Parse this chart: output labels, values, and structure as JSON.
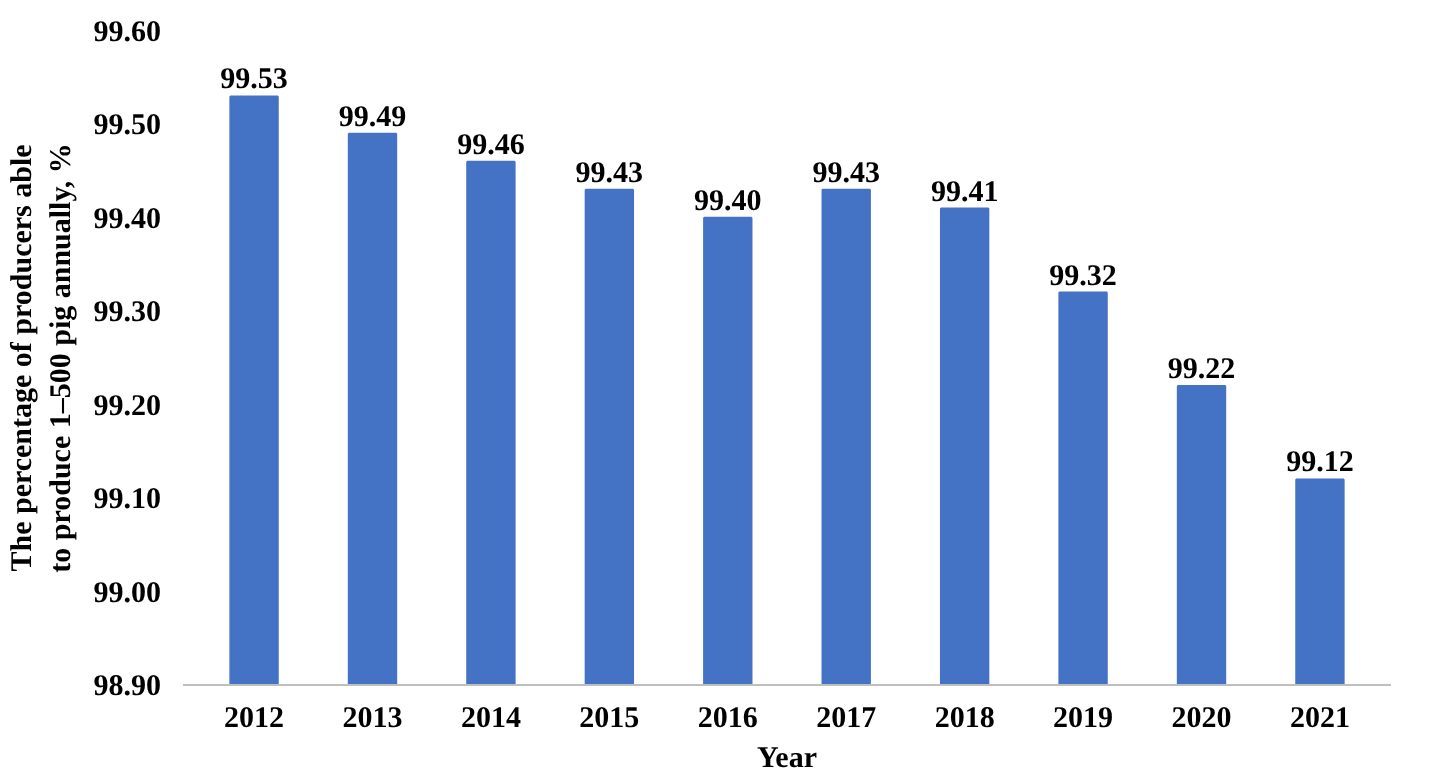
{
  "chart_data": {
    "type": "bar",
    "xlabel": "Year",
    "ylabel": "The percentage of producers able to produce 1–500 pig annually, %",
    "categories": [
      "2012",
      "2013",
      "2014",
      "2015",
      "2016",
      "2017",
      "2018",
      "2019",
      "2020",
      "2021"
    ],
    "values": [
      99.53,
      99.49,
      99.46,
      99.43,
      99.4,
      99.43,
      99.41,
      99.32,
      99.22,
      99.12
    ],
    "value_labels": [
      "99.53",
      "99.49",
      "99.46",
      "99.43",
      "99.40",
      "99.43",
      "99.41",
      "99.32",
      "99.22",
      "99.12"
    ],
    "color": "#4472c4",
    "grid": false,
    "ylim": [
      98.9,
      99.6
    ],
    "yticks": [
      {
        "value": 98.9,
        "label": "98.90"
      },
      {
        "value": 99.0,
        "label": "99.00"
      },
      {
        "value": 99.1,
        "label": "99.10"
      },
      {
        "value": 99.2,
        "label": "99.20"
      },
      {
        "value": 99.3,
        "label": "99.30"
      },
      {
        "value": 99.4,
        "label": "99.40"
      },
      {
        "value": 99.5,
        "label": "99.50"
      },
      {
        "value": 99.6,
        "label": "99.60"
      }
    ]
  }
}
